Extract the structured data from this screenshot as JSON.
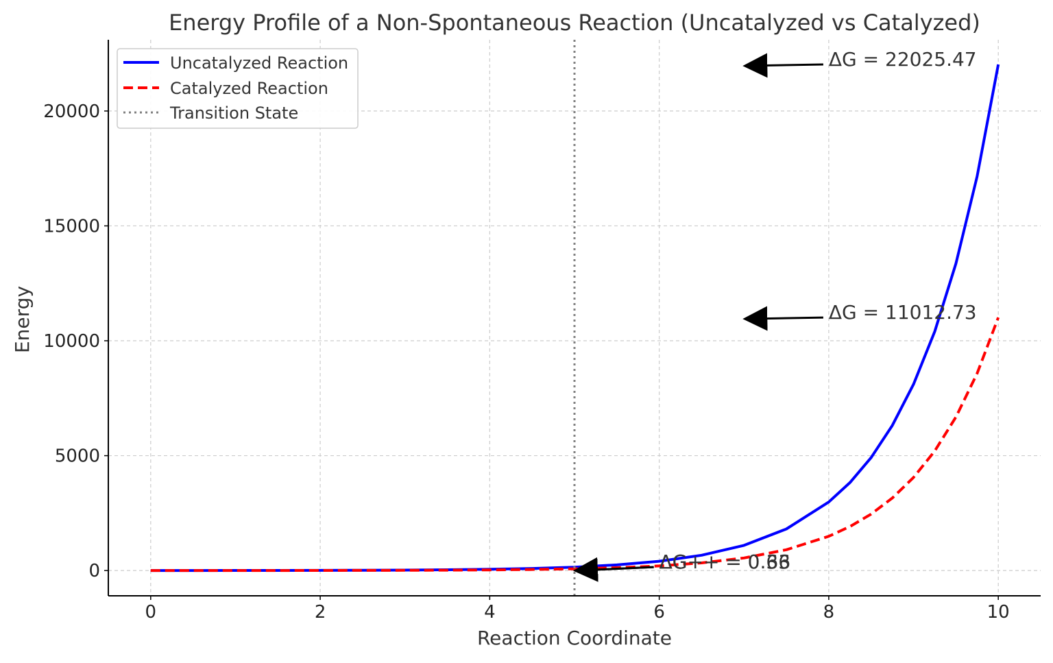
{
  "chart_data": {
    "type": "line",
    "title": "Energy Profile of a Non-Spontaneous Reaction (Uncatalyzed vs Catalyzed)",
    "xlabel": "Reaction Coordinate",
    "ylabel": "Energy",
    "xlim": [
      -0.5,
      10.5
    ],
    "ylim": [
      -1100,
      23100
    ],
    "xticks": [
      0,
      2,
      4,
      6,
      8,
      10
    ],
    "yticks": [
      0,
      5000,
      10000,
      15000,
      20000
    ],
    "grid": true,
    "legend_position": "top-left",
    "series": [
      {
        "name": "Uncatalyzed Reaction",
        "color": "#0000ff",
        "style": "solid",
        "x": [
          0,
          0.5,
          1,
          1.5,
          2,
          2.5,
          3,
          3.5,
          4,
          4.5,
          5,
          5.5,
          6,
          6.5,
          7,
          7.5,
          8,
          8.25,
          8.5,
          8.75,
          9,
          9.25,
          9.5,
          9.75,
          10
        ],
        "y": [
          1,
          1.6,
          2.7,
          4.5,
          7.4,
          12.2,
          20.1,
          33.1,
          54.6,
          90.0,
          148.4,
          244.7,
          403.4,
          665.1,
          1096.6,
          1808.0,
          2981.0,
          3827.6,
          4914.8,
          6310.7,
          8103.1,
          10404.6,
          13359.7,
          17154.2,
          22025.47
        ]
      },
      {
        "name": "Catalyzed Reaction",
        "color": "#ff0000",
        "style": "dashed",
        "x": [
          0,
          0.5,
          1,
          1.5,
          2,
          2.5,
          3,
          3.5,
          4,
          4.5,
          5,
          5.5,
          6,
          6.5,
          7,
          7.5,
          8,
          8.25,
          8.5,
          8.75,
          9,
          9.25,
          9.5,
          9.75,
          10
        ],
        "y": [
          0.5,
          0.8,
          1.4,
          2.2,
          3.7,
          6.1,
          10.0,
          16.6,
          27.3,
          45.0,
          74.2,
          122.3,
          201.7,
          332.6,
          548.3,
          904.0,
          1490.5,
          1913.8,
          2457.4,
          3155.4,
          4051.5,
          5202.3,
          6679.9,
          8577.1,
          11012.73
        ]
      },
      {
        "name": "Transition State",
        "color": "#808080",
        "style": "dotted",
        "type": "vline",
        "x": 5
      }
    ],
    "annotations": [
      {
        "text": "ΔG = 22025.47",
        "text_x": 8.0,
        "text_y": 22025.47,
        "arrow_x": 7.0,
        "arrow_y": 22025.47
      },
      {
        "text": "ΔG = 11012.73",
        "text_x": 8.0,
        "text_y": 11012.73,
        "arrow_x": 7.0,
        "arrow_y": 11012.73
      },
      {
        "text": "ΔG++ = 0.66",
        "text_x": 6.0,
        "text_y": 150,
        "arrow_x": 5.0,
        "arrow_y": 0
      },
      {
        "text": "ΔG++ = 0.33",
        "text_x": 6.0,
        "text_y": 150,
        "arrow_x": 5.0,
        "arrow_y": 0
      }
    ]
  }
}
